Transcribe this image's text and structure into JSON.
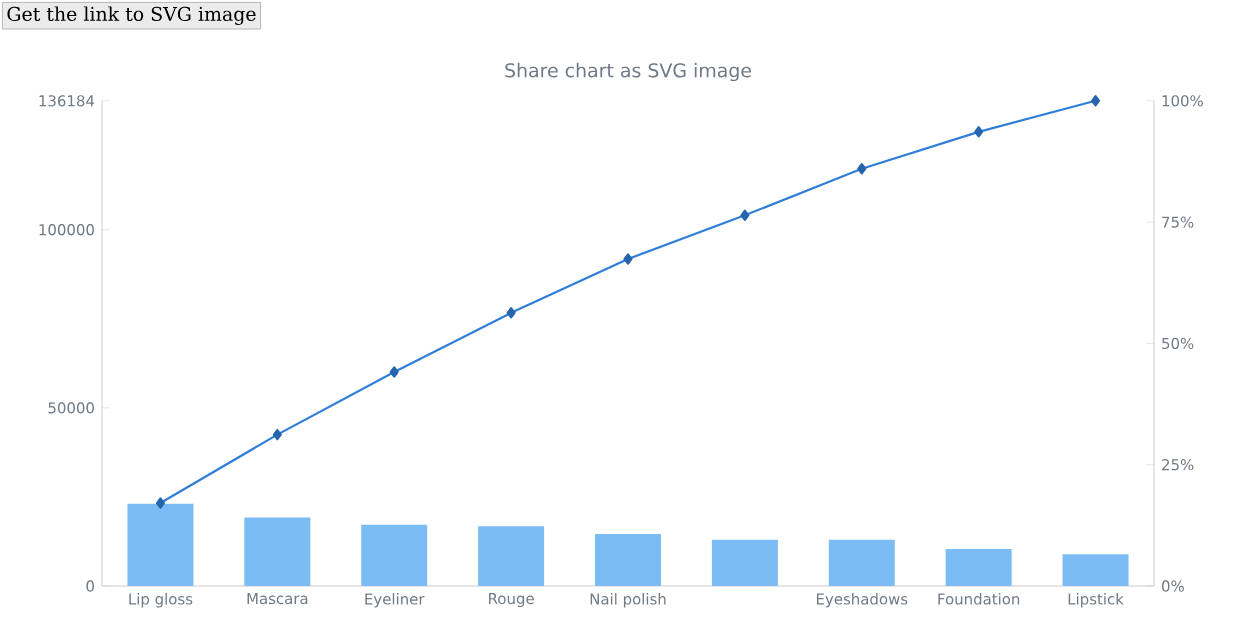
{
  "chart_data": {
    "type": "bar",
    "title": "Share chart as SVG image",
    "annotations": [
      "Get the link to SVG image"
    ],
    "categories": [
      "Lip gloss",
      "Mascara",
      "Eyeliner",
      "Rouge",
      "Nail polish",
      null,
      "Eyeshadows",
      "Foundation",
      "Lipstick"
    ],
    "series": [
      {
        "color": "#7cbcf5",
        "values": [
          23100,
          19200,
          17200,
          16800,
          14600,
          13000,
          13000,
          10400,
          8900
        ]
      },
      {
        "type": "line",
        "axis": "y2",
        "color": "#2f7ed8",
        "marker": "diamond",
        "values": [
          17.1,
          31.2,
          44.1,
          56.3,
          67.4,
          76.4,
          86.0,
          93.6,
          100
        ]
      }
    ],
    "ylim": [
      0,
      136184
    ],
    "yticks": [
      0,
      50000,
      100000,
      136184
    ],
    "y2lim": [
      0,
      100
    ],
    "y2ticks": [
      {
        "value": 0,
        "label": "0%"
      },
      {
        "value": 25,
        "label": "25%"
      },
      {
        "value": 50,
        "label": "50%"
      },
      {
        "value": 75,
        "label": "75%"
      },
      {
        "value": 100,
        "label": "100%"
      }
    ],
    "grid": false
  }
}
